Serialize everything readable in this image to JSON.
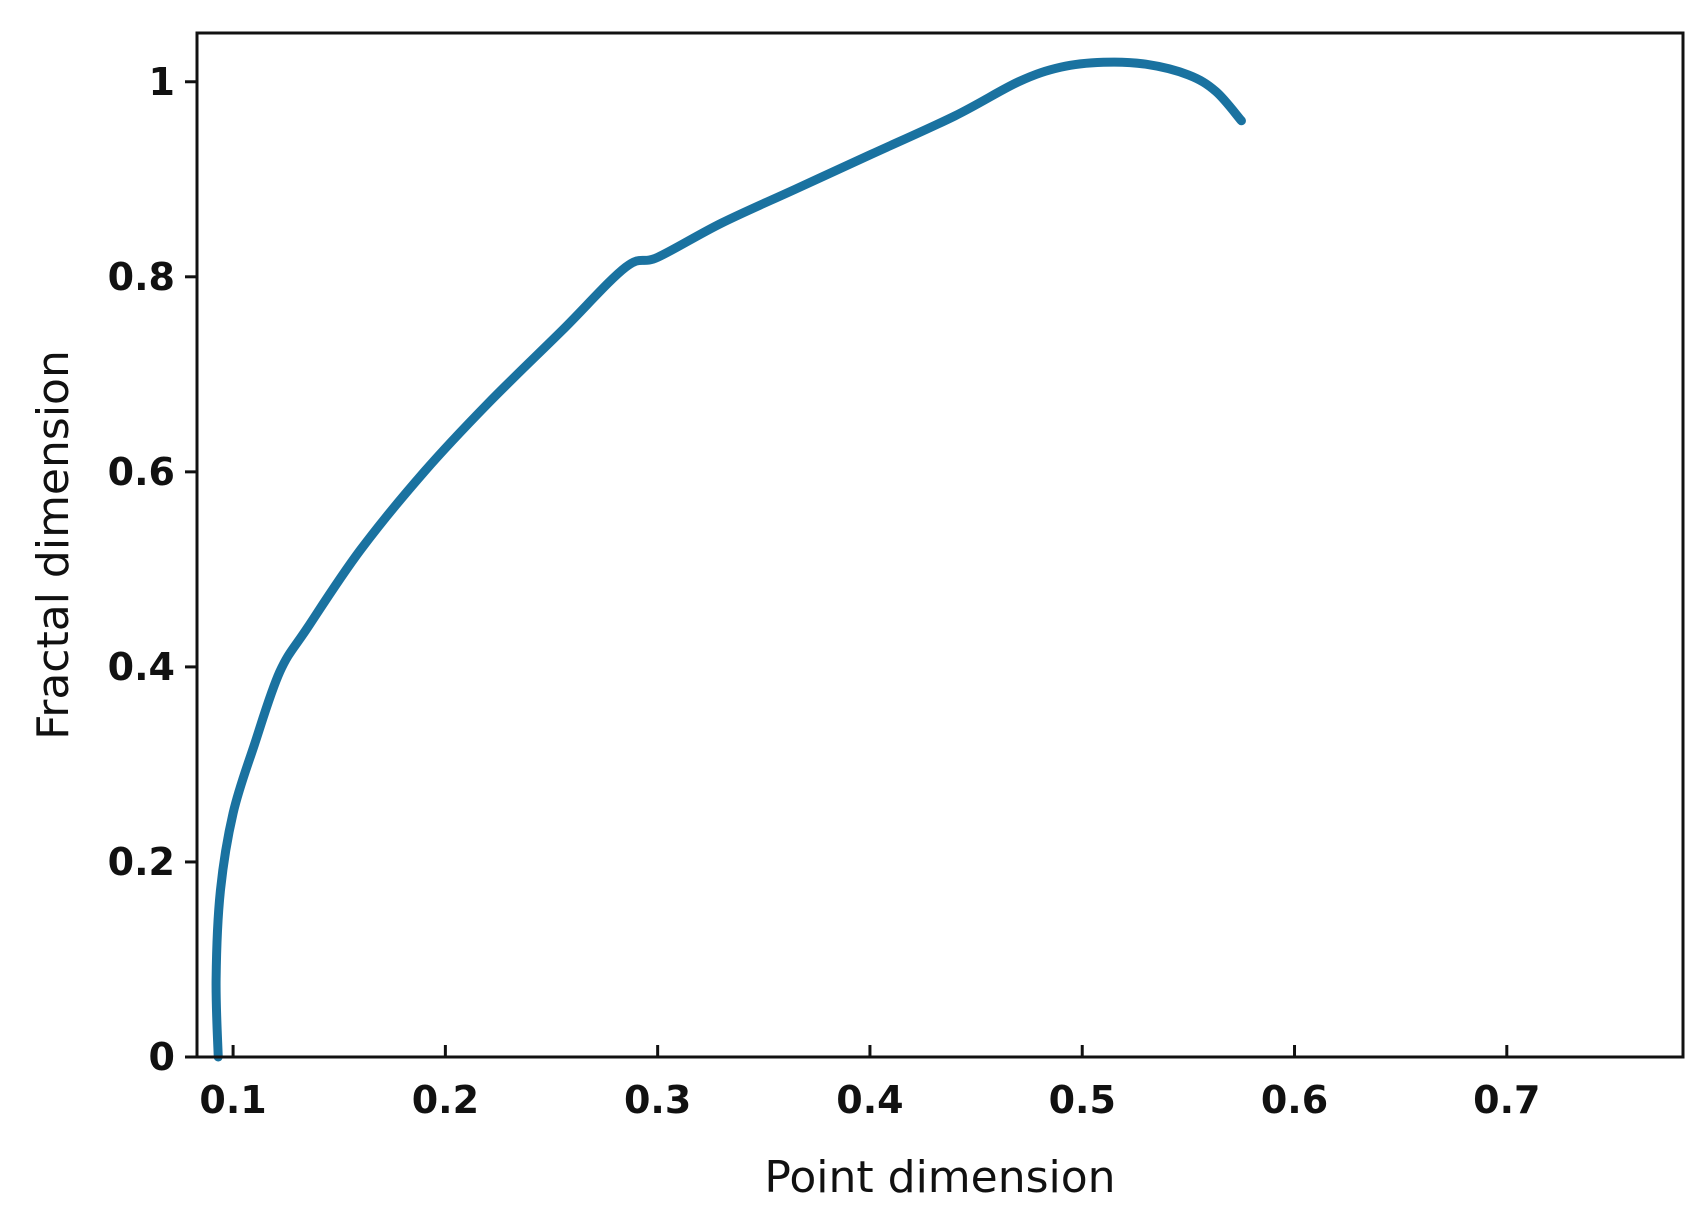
{
  "chart_data": {
    "type": "line",
    "title": "",
    "xlabel": "Point dimension",
    "ylabel": "Fractal dimension",
    "xlim": [
      0.083,
      0.783
    ],
    "ylim": [
      0,
      1.05
    ],
    "xticks": [
      0.1,
      0.2,
      0.3,
      0.4,
      0.5,
      0.6,
      0.7
    ],
    "xtick_labels": [
      "0.1",
      "0.2",
      "0.3",
      "0.4",
      "0.5",
      "0.6",
      "0.7"
    ],
    "yticks": [
      0,
      0.2,
      0.4,
      0.6,
      0.8,
      1
    ],
    "ytick_labels": [
      "0",
      "0.2",
      "0.4",
      "0.6",
      "0.8",
      "1"
    ],
    "grid": false,
    "legend": "none",
    "series": [
      {
        "color": "#1a72a0",
        "x": [
          0.093,
          0.092,
          0.094,
          0.1,
          0.11,
          0.122,
          0.135,
          0.16,
          0.19,
          0.22,
          0.255,
          0.285,
          0.3,
          0.33,
          0.365,
          0.4,
          0.44,
          0.47,
          0.49,
          0.51,
          0.53,
          0.55,
          0.563,
          0.575
        ],
        "y": [
          0.0,
          0.08,
          0.17,
          0.25,
          0.32,
          0.395,
          0.44,
          0.52,
          0.6,
          0.67,
          0.745,
          0.81,
          0.82,
          0.855,
          0.89,
          0.925,
          0.965,
          1.0,
          1.015,
          1.02,
          1.018,
          1.007,
          0.99,
          0.96
        ]
      }
    ]
  }
}
